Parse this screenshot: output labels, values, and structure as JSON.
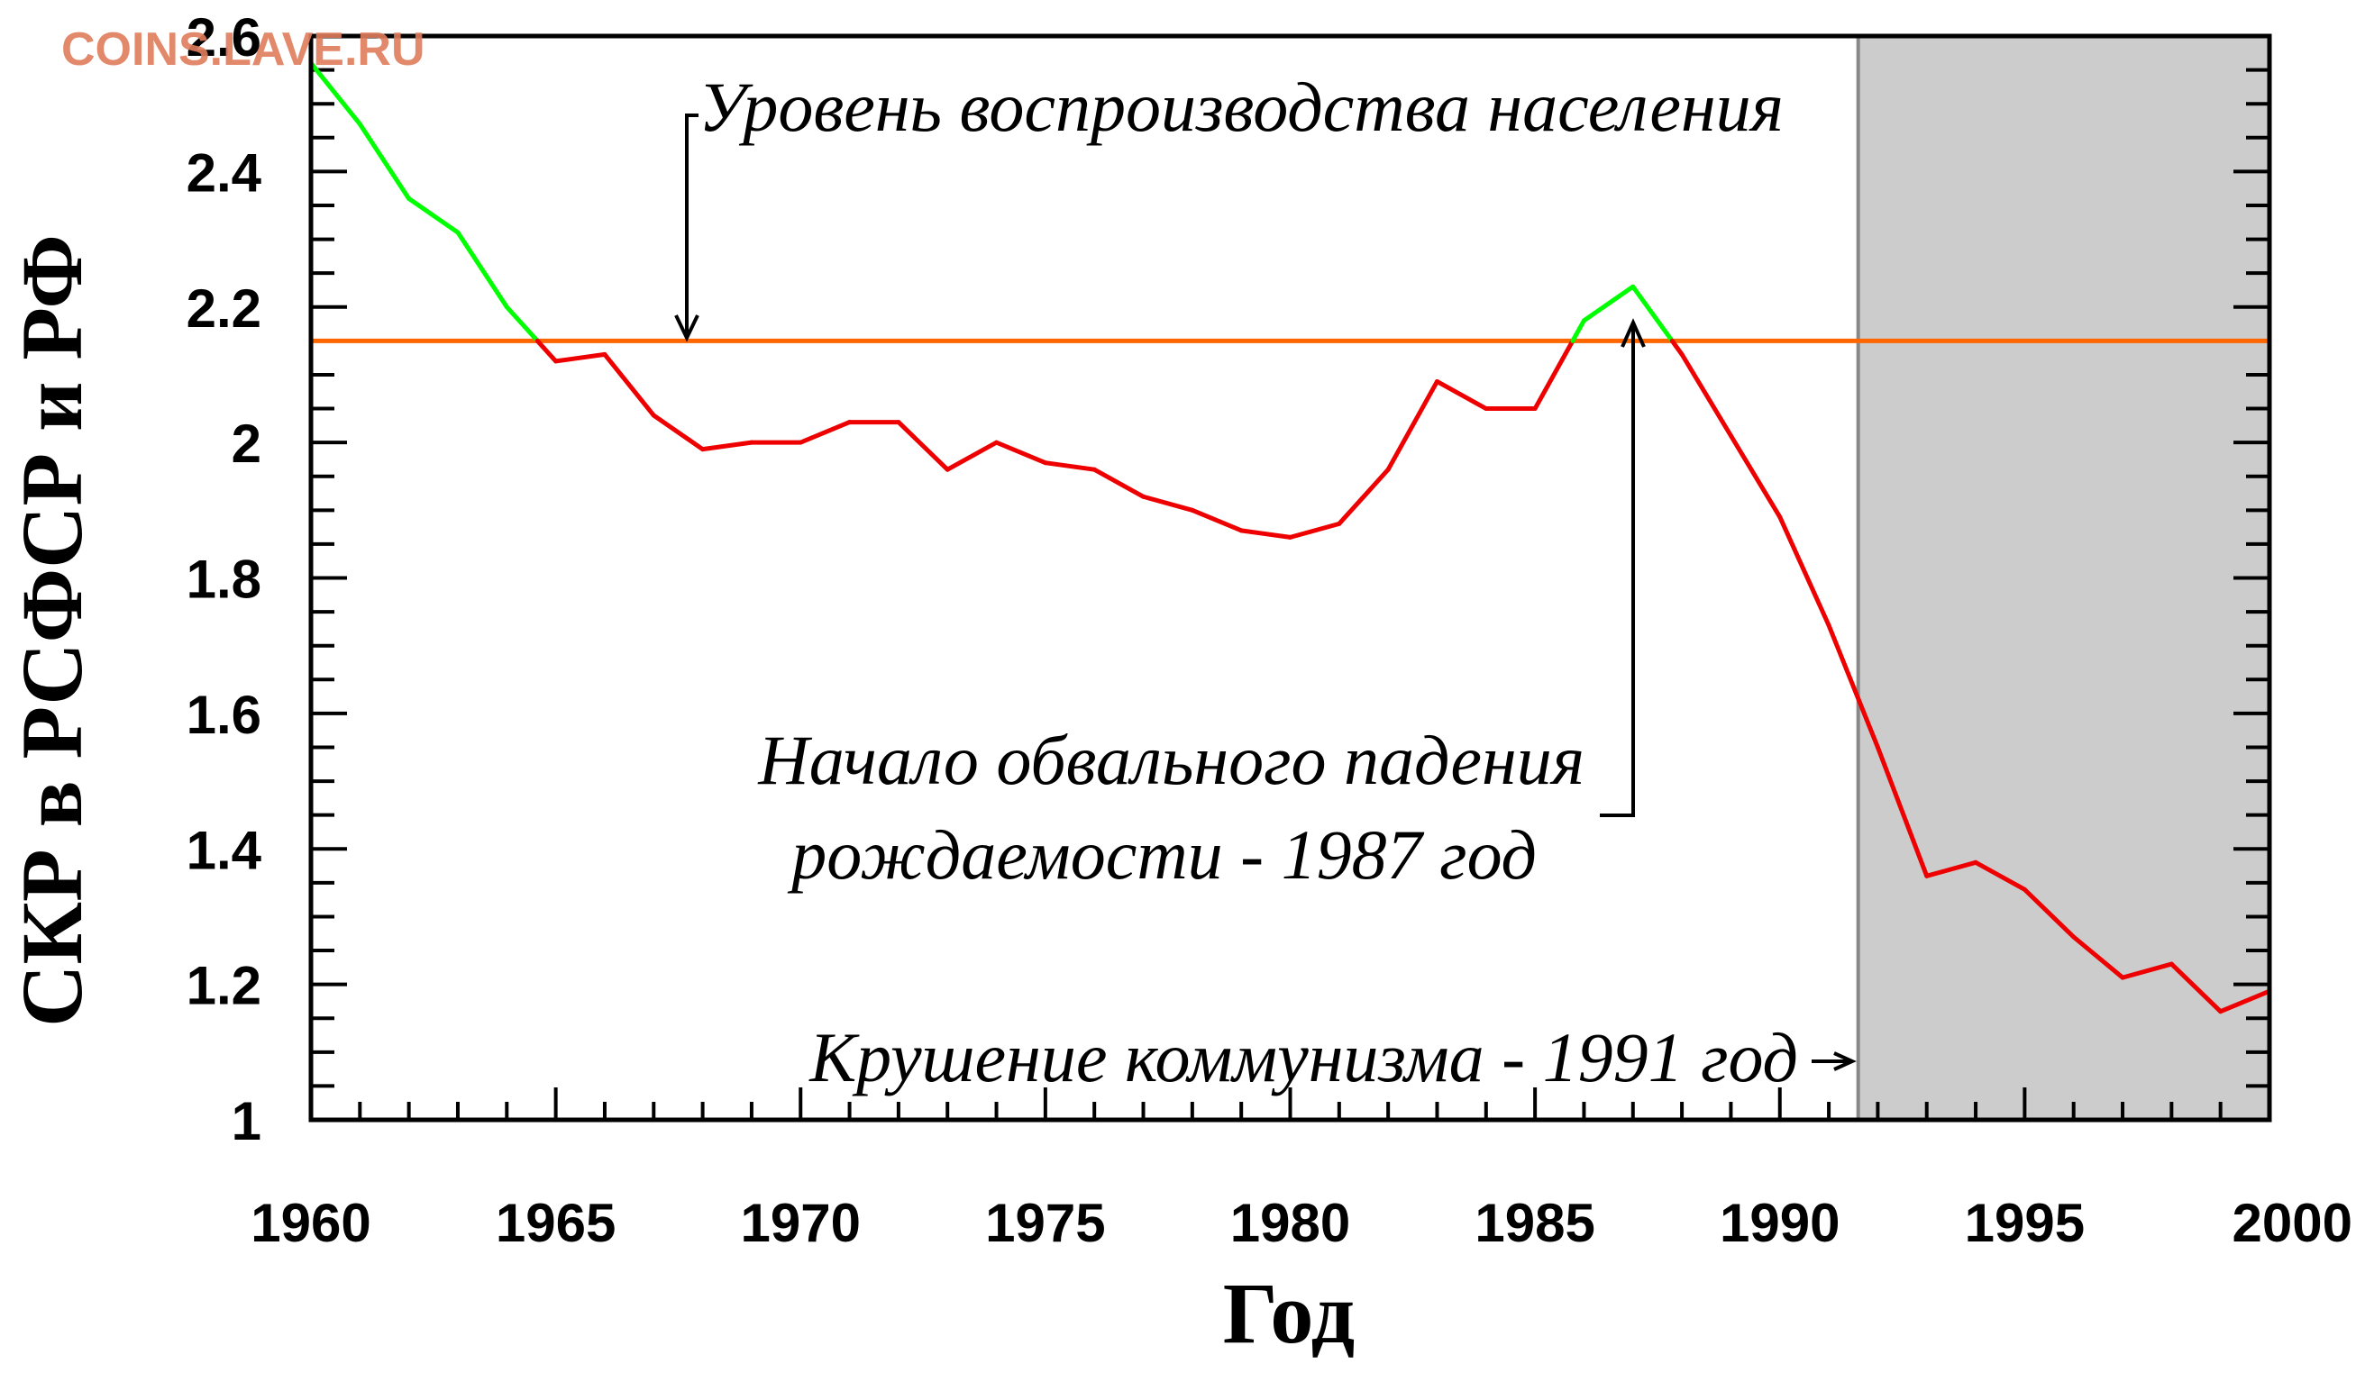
{
  "watermark": "COINS.LAVE.RU",
  "chart_data": {
    "type": "line",
    "title": "",
    "xlabel": "Год",
    "ylabel": "СКР в РСФСР и РФ",
    "xlim": [
      1960,
      2000
    ],
    "ylim": [
      1.0,
      2.6
    ],
    "x_ticks": [
      "1960",
      "1965",
      "1970",
      "1975",
      "1980",
      "1985",
      "1990",
      "1995",
      "2000"
    ],
    "y_ticks": [
      "1",
      "1.2",
      "1.4",
      "1.6",
      "1.8",
      "2",
      "2.2",
      "2.4",
      "2.6"
    ],
    "grid": false,
    "series": [
      {
        "color_above": "#00ff00",
        "color_below": "#ee0000",
        "points": [
          [
            1960,
            2.56
          ],
          [
            1961,
            2.47
          ],
          [
            1962,
            2.36
          ],
          [
            1963,
            2.31
          ],
          [
            1964,
            2.2
          ],
          [
            1965,
            2.12
          ],
          [
            1966,
            2.13
          ],
          [
            1967,
            2.04
          ],
          [
            1968,
            1.99
          ],
          [
            1969,
            2.0
          ],
          [
            1970,
            2.0
          ],
          [
            1971,
            2.03
          ],
          [
            1972,
            2.03
          ],
          [
            1973,
            1.96
          ],
          [
            1974,
            2.0
          ],
          [
            1975,
            1.97
          ],
          [
            1976,
            1.96
          ],
          [
            1977,
            1.92
          ],
          [
            1978,
            1.9
          ],
          [
            1979,
            1.87
          ],
          [
            1980,
            1.86
          ],
          [
            1981,
            1.88
          ],
          [
            1982,
            1.96
          ],
          [
            1983,
            2.09
          ],
          [
            1984,
            2.05
          ],
          [
            1985,
            2.05
          ],
          [
            1986,
            2.18
          ],
          [
            1987,
            2.23
          ],
          [
            1988,
            2.13
          ],
          [
            1989,
            2.01
          ],
          [
            1990,
            1.89
          ],
          [
            1991,
            1.73
          ],
          [
            1992,
            1.55
          ],
          [
            1993,
            1.36
          ],
          [
            1994,
            1.38
          ],
          [
            1995,
            1.34
          ],
          [
            1996,
            1.27
          ],
          [
            1997,
            1.21
          ],
          [
            1998,
            1.23
          ],
          [
            1999,
            1.16
          ],
          [
            2000,
            1.19
          ]
        ]
      }
    ],
    "reference_line": {
      "y": 2.15,
      "color": "#ff6600"
    },
    "shaded_region": {
      "x_from": 1991.6,
      "x_to": 2000,
      "color": "#cccccc"
    },
    "annotations": [
      {
        "text": "Уровень воспроизводства населения"
      },
      {
        "text": "Начало обвального падения"
      },
      {
        "text": "рождаемости - 1987 год"
      },
      {
        "text": "Крушение коммунизма - 1991 год"
      }
    ]
  }
}
